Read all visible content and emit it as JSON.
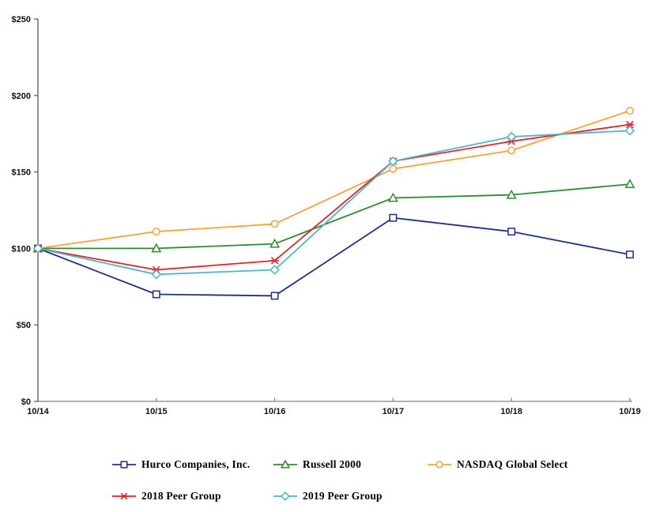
{
  "chart_data": {
    "type": "line",
    "title": "",
    "xlabel": "",
    "ylabel": "",
    "x_categories": [
      "10/14",
      "10/15",
      "10/16",
      "10/17",
      "10/18",
      "10/19"
    ],
    "y_tick_labels": [
      "$0",
      "$50",
      "$100",
      "$150",
      "$200",
      "$250"
    ],
    "y_tick_values": [
      0,
      50,
      100,
      150,
      200,
      250
    ],
    "ylim": [
      0,
      250
    ],
    "grid": false,
    "legend_position": "bottom",
    "axis_colors": {
      "y_axis": "#595959",
      "x_axis": "#808080",
      "tick_text": "#111111"
    },
    "series": [
      {
        "name": "Hurco Companies, Inc.",
        "color": "#1F3187",
        "marker": "square",
        "values": [
          100,
          70,
          69,
          120,
          111,
          96
        ]
      },
      {
        "name": "Russell 2000",
        "color": "#2E8B32",
        "marker": "triangle",
        "values": [
          100,
          100,
          103,
          133,
          135,
          142
        ]
      },
      {
        "name": "NASDAQ Global Select",
        "color": "#F6A23B",
        "marker": "circle",
        "values": [
          100,
          111,
          116,
          152,
          164,
          190
        ]
      },
      {
        "name": "2018 Peer Group",
        "color": "#E02428",
        "marker": "asterisk",
        "values": [
          100,
          86,
          92,
          157,
          170,
          181
        ]
      },
      {
        "name": "2019 Peer Group",
        "color": "#4FB4CE",
        "marker": "diamond",
        "values": [
          100,
          83,
          86,
          157,
          173,
          177
        ]
      }
    ]
  }
}
